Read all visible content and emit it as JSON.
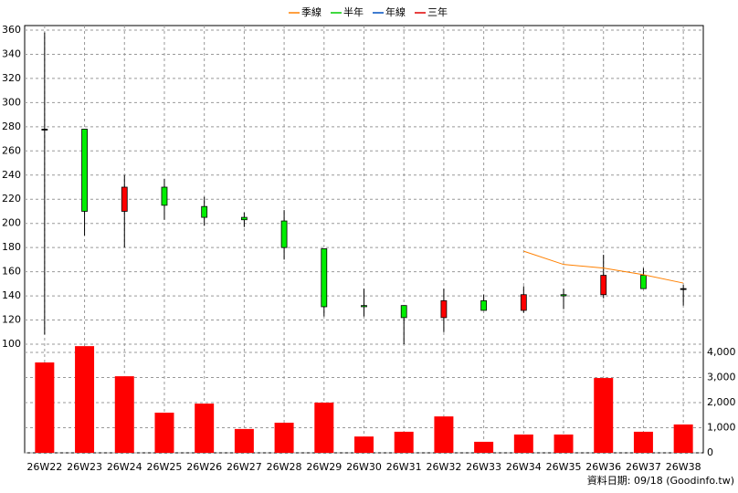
{
  "chart_data": {
    "type": "candlestick",
    "categories": [
      "26W22",
      "26W23",
      "26W24",
      "26W25",
      "26W26",
      "26W27",
      "26W28",
      "26W29",
      "26W30",
      "26W31",
      "26W32",
      "26W33",
      "26W34",
      "26W35",
      "26W36",
      "26W37",
      "26W38"
    ],
    "open": [
      278,
      278,
      210,
      230,
      214,
      205,
      202,
      179,
      132,
      132,
      122,
      136,
      128,
      141,
      141,
      157,
      146
    ],
    "high": [
      358,
      278,
      240,
      237,
      222,
      209,
      211,
      179,
      146,
      132,
      146,
      141,
      148,
      146,
      174,
      163,
      149
    ],
    "low": [
      108,
      190,
      180,
      203,
      198,
      197,
      170,
      123,
      123,
      100,
      110,
      128,
      126,
      129,
      138,
      146,
      132
    ],
    "close": [
      278,
      210,
      230,
      215,
      205,
      203,
      180,
      131,
      131,
      122,
      136,
      128,
      141,
      140,
      157,
      146,
      146
    ],
    "up_color": "#ff0000",
    "down_color": "#00ee00",
    "series": [
      {
        "name": "季線",
        "color": "#ff8000",
        "values": [
          null,
          null,
          null,
          null,
          null,
          null,
          null,
          null,
          null,
          null,
          null,
          null,
          177,
          166,
          163,
          157.5,
          150.6
        ]
      },
      {
        "name": "半年",
        "color": "#00cc00",
        "values": [
          null,
          null,
          null,
          null,
          null,
          null,
          null,
          null,
          null,
          null,
          null,
          null,
          null,
          null,
          null,
          null,
          null
        ]
      },
      {
        "name": "年線",
        "color": "#0050c0",
        "values": [
          null,
          null,
          null,
          null,
          null,
          null,
          null,
          null,
          null,
          null,
          null,
          null,
          null,
          null,
          null,
          null,
          null
        ]
      },
      {
        "name": "三年",
        "color": "#e00000",
        "values": [
          null,
          null,
          null,
          null,
          null,
          null,
          null,
          null,
          null,
          null,
          null,
          null,
          null,
          null,
          null,
          null,
          null
        ]
      }
    ],
    "volume": {
      "color": "#ff0000",
      "axis": "y2",
      "values": [
        3600,
        4250,
        3050,
        1600,
        1960,
        950,
        1200,
        2000,
        650,
        840,
        1450,
        440,
        730,
        730,
        2980,
        840,
        1130
      ]
    },
    "ylim": [
      100,
      360
    ],
    "yticks": [
      100,
      120,
      140,
      160,
      180,
      200,
      220,
      240,
      260,
      280,
      300,
      320,
      340,
      360
    ],
    "y2lim": [
      0,
      4000
    ],
    "y2ticks": [
      0,
      {
        "value": 1000,
        "label": "1,000"
      },
      {
        "value": 2000,
        "label": "2,000"
      },
      {
        "value": 3000,
        "label": "3,000"
      },
      {
        "value": 4000,
        "label": "4,000"
      }
    ],
    "grid": true,
    "footer": "資料日期: 09/18  (Goodinfo.tw)"
  }
}
